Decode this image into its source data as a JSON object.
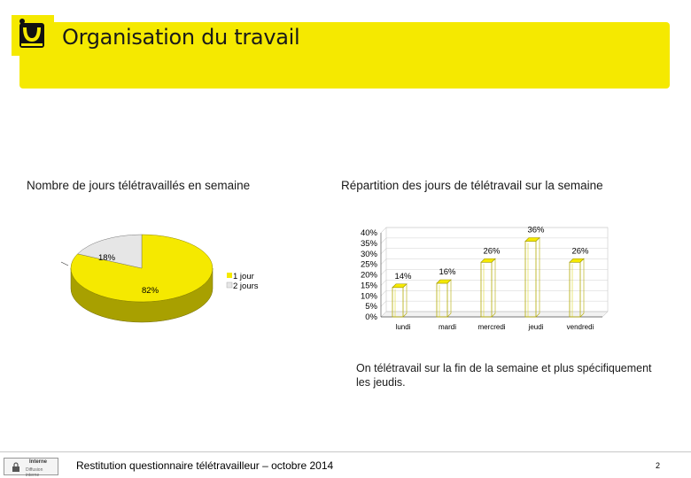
{
  "header": {
    "title": "Organisation du travail",
    "band_color": "#f5e900",
    "logo_caption": "logo"
  },
  "chart_data": [
    {
      "type": "pie",
      "title": "Nombre de jours télétravaillés en semaine",
      "labels": [
        "1 jour",
        "2 jours"
      ],
      "values": [
        82,
        18
      ],
      "data_labels": [
        "82%",
        "18%"
      ],
      "colors": [
        "#f5e900",
        "#e6e6e6"
      ],
      "legend_position": "right"
    },
    {
      "type": "bar",
      "title": "Répartition des jours de télétravail sur la semaine",
      "categories": [
        "lundi",
        "mardi",
        "mercredi",
        "jeudi",
        "vendredi"
      ],
      "values": [
        14,
        16,
        26,
        36,
        26
      ],
      "data_labels": [
        "14%",
        "16%",
        "26%",
        "36%",
        "26%"
      ],
      "ylim": [
        0,
        40
      ],
      "yticks": [
        "0%",
        "5%",
        "10%",
        "15%",
        "20%",
        "25%",
        "30%",
        "35%",
        "40%"
      ],
      "grid": true,
      "color": "#f5e900"
    }
  ],
  "comment": "On télétravail sur la fin de la semaine et plus spécifiquement les jeudis.",
  "footer": {
    "badge_line1": "Interne",
    "badge_line2": "Diffusion interne",
    "text": "Restitution questionnaire télétravailleur – octobre 2014",
    "page_number": "2"
  }
}
